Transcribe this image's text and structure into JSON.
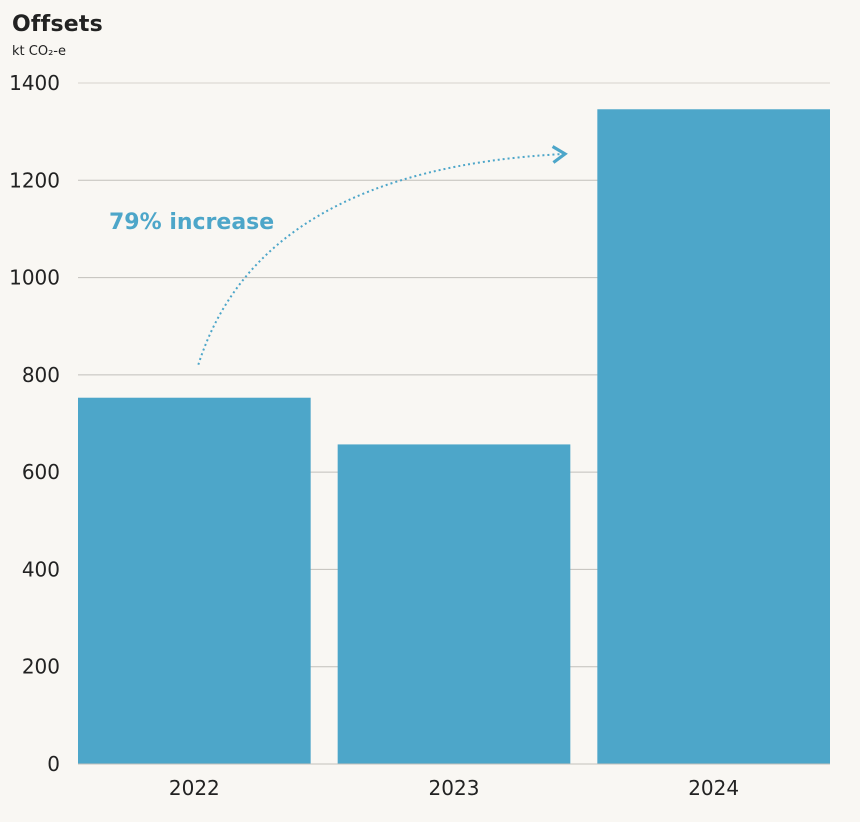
{
  "chart_data": {
    "type": "bar",
    "title": "Offsets",
    "unit": "kt CO₂-e",
    "categories": [
      "2022",
      "2023",
      "2024"
    ],
    "values": [
      753,
      657,
      1346
    ],
    "ylim": [
      0,
      1400
    ],
    "yticks": [
      "0",
      "200",
      "400",
      "600",
      "800",
      "1000",
      "1200",
      "1400"
    ],
    "grid": true,
    "bar_color": "#4da6c9",
    "annotation": {
      "text": "79% increase",
      "color": "#4da6c9",
      "arrow_from": "2022",
      "arrow_to": "2024"
    }
  }
}
